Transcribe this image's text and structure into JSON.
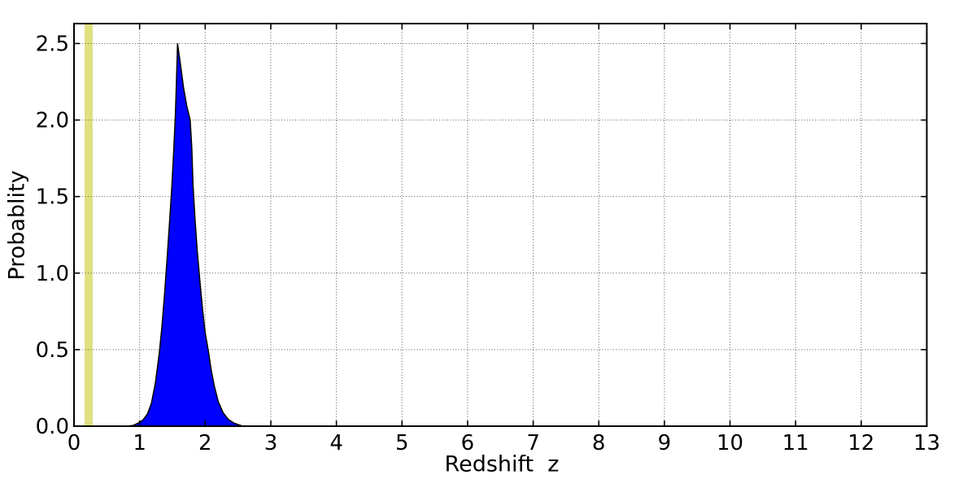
{
  "chart_data": {
    "type": "area",
    "xlabel": "Redshift  z",
    "ylabel": "Probablity",
    "xlim": [
      0,
      13
    ],
    "ylim": [
      0,
      2.63
    ],
    "x_ticks": [
      0,
      1,
      2,
      3,
      4,
      5,
      6,
      7,
      8,
      9,
      10,
      11,
      12,
      13
    ],
    "x_tick_labels": [
      "0",
      "1",
      "2",
      "3",
      "4",
      "5",
      "6",
      "7",
      "8",
      "9",
      "10",
      "11",
      "12",
      "13"
    ],
    "y_ticks": [
      0.0,
      0.5,
      1.0,
      1.5,
      2.0,
      2.5
    ],
    "y_tick_labels": [
      "0.0",
      "0.5",
      "1.0",
      "1.5",
      "2.0",
      "2.5"
    ],
    "grid": "dotted",
    "legend": "none",
    "peak": {
      "z": 1.58,
      "value": 2.5
    },
    "series": [
      {
        "name": "redshift-probability-curve",
        "type": "filled-curve",
        "fill_color": "#0000ff",
        "edge_color": "#000000",
        "points": [
          [
            0.8,
            0.0
          ],
          [
            0.9,
            0.005
          ],
          [
            0.98,
            0.02
          ],
          [
            1.05,
            0.04
          ],
          [
            1.12,
            0.08
          ],
          [
            1.18,
            0.15
          ],
          [
            1.24,
            0.28
          ],
          [
            1.3,
            0.48
          ],
          [
            1.34,
            0.65
          ],
          [
            1.38,
            0.86
          ],
          [
            1.42,
            1.1
          ],
          [
            1.46,
            1.36
          ],
          [
            1.49,
            1.56
          ],
          [
            1.52,
            1.8
          ],
          [
            1.545,
            2.03
          ],
          [
            1.562,
            2.26
          ],
          [
            1.578,
            2.5
          ],
          [
            1.595,
            2.45
          ],
          [
            1.63,
            2.34
          ],
          [
            1.67,
            2.21
          ],
          [
            1.72,
            2.09
          ],
          [
            1.77,
            2.0
          ],
          [
            1.795,
            1.82
          ],
          [
            1.815,
            1.57
          ],
          [
            1.845,
            1.35
          ],
          [
            1.88,
            1.14
          ],
          [
            1.92,
            0.94
          ],
          [
            1.96,
            0.76
          ],
          [
            2.0,
            0.61
          ],
          [
            2.045,
            0.5
          ],
          [
            2.09,
            0.37
          ],
          [
            2.14,
            0.26
          ],
          [
            2.2,
            0.16
          ],
          [
            2.27,
            0.09
          ],
          [
            2.35,
            0.045
          ],
          [
            2.44,
            0.02
          ],
          [
            2.57,
            0.0
          ]
        ]
      }
    ],
    "markers": [
      {
        "name": "reference-redshift-band",
        "type": "vertical-band",
        "x_min": 0.161,
        "x_max": 0.285,
        "x_center": 0.22,
        "color": "#dfe080"
      }
    ],
    "style": {
      "background": "#ffffff",
      "frame_color": "#000000",
      "grid_color": "#555555",
      "text_color": "#000000"
    }
  }
}
